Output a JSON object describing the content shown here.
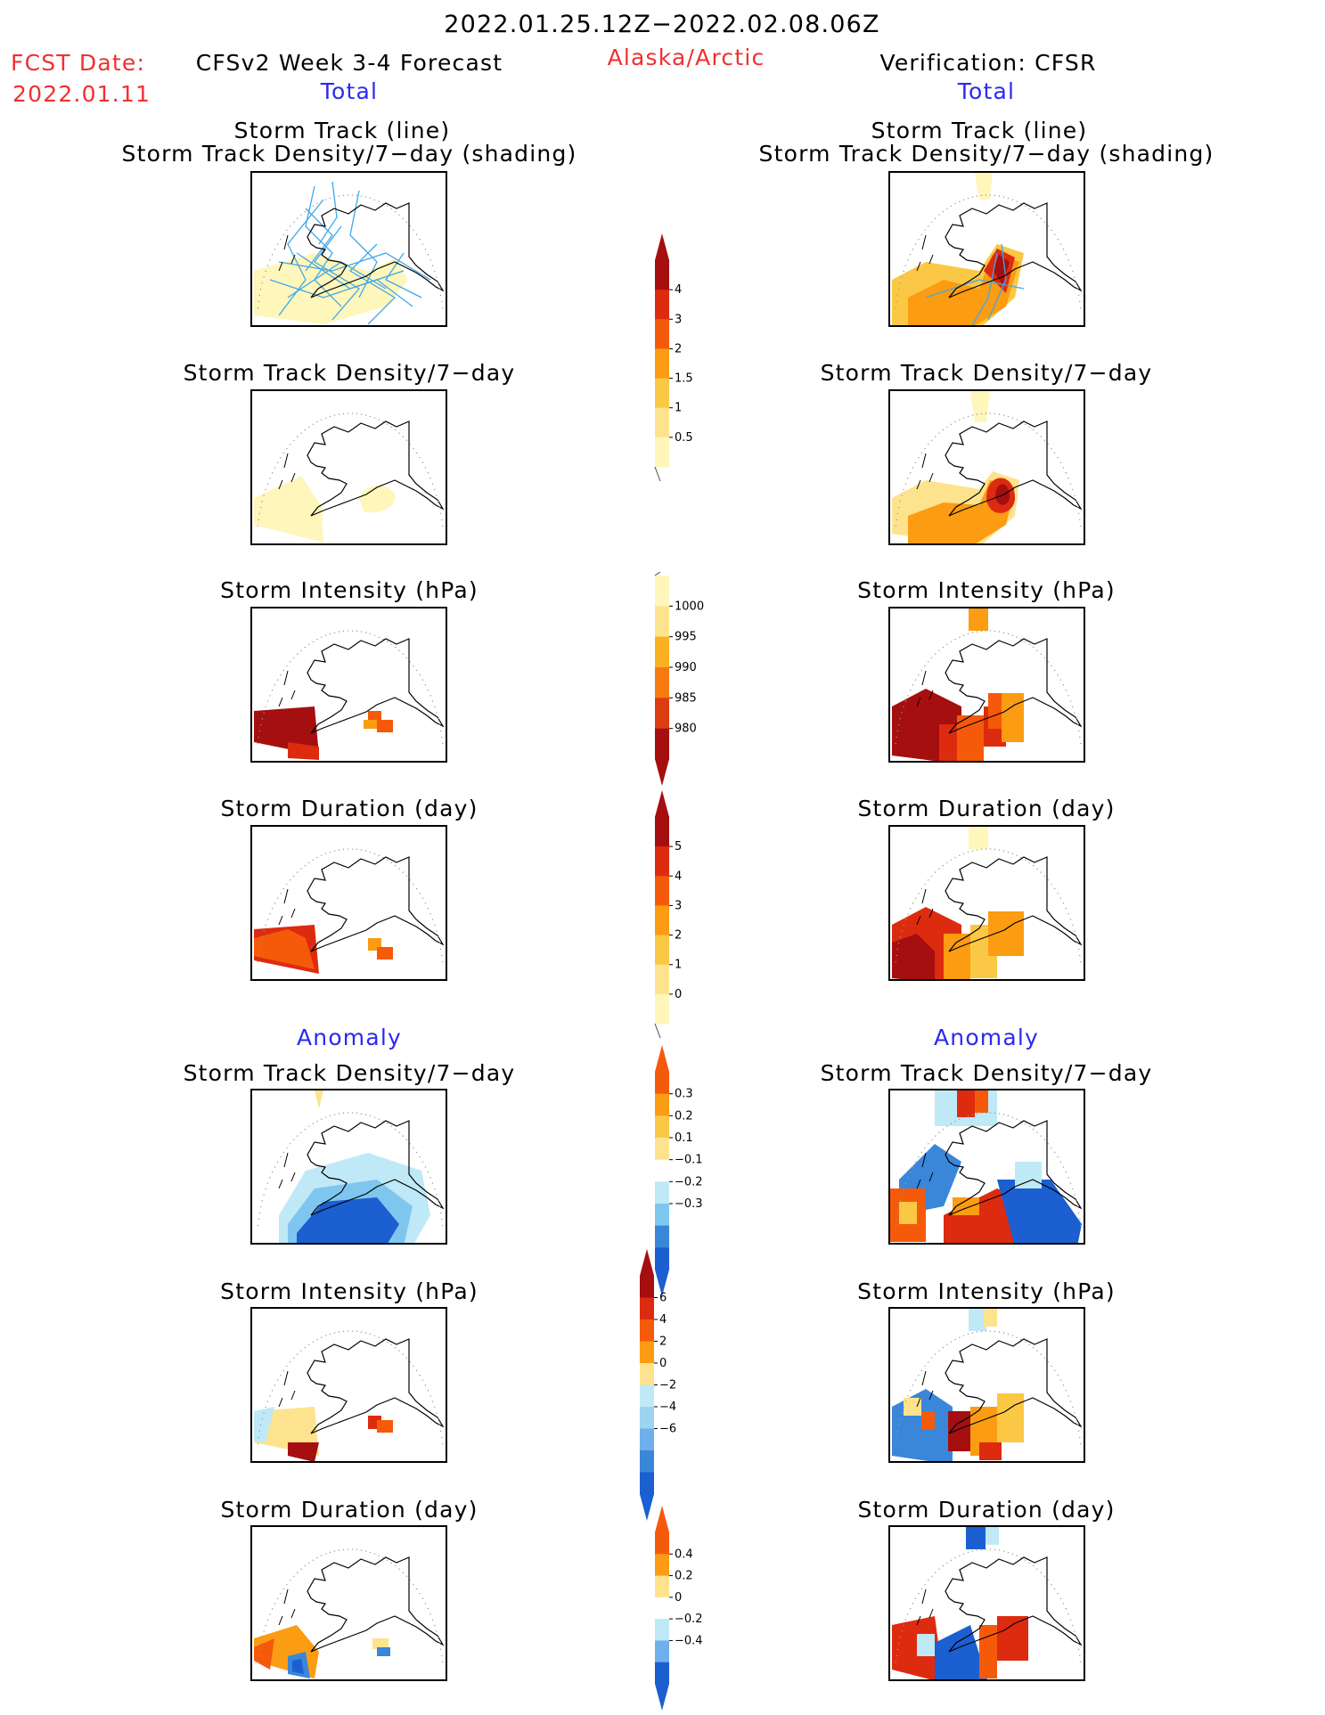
{
  "header": {
    "period": "2022.01.25.12Z−2022.02.08.06Z",
    "fcst_label": "FCST Date:",
    "fcst_date": "2022.01.11",
    "forecast_title": "CFSv2 Week 3-4 Forecast",
    "region": "Alaska/Arctic",
    "verification": "Verification: CFSR",
    "left_section": "Total",
    "right_section": "Total"
  },
  "titles": {
    "track_line": "Storm Track (line)",
    "track_shading": "Storm Track Density/7−day (shading)",
    "density": "Storm Track Density/7−day",
    "intensity": "Storm Intensity (hPa)",
    "duration": "Storm Duration (day)",
    "anomaly": "Anomaly"
  },
  "colorbars": {
    "density_total": {
      "labels": [
        "4",
        "3",
        "2",
        "1.5",
        "1",
        "0.5"
      ],
      "colors": [
        "#a50f0f",
        "#dd2b10",
        "#f55a0a",
        "#fb9c12",
        "#fbc845",
        "#fde38d",
        "#fef6bb"
      ]
    },
    "intensity_total": {
      "labels": [
        "1000",
        "995",
        "990",
        "985",
        "980"
      ],
      "colors": [
        "#fef6bb",
        "#fde38d",
        "#fbb020",
        "#f77a10",
        "#dd3b10",
        "#a50f0f"
      ]
    },
    "duration_total": {
      "labels": [
        "5",
        "4",
        "3",
        "2",
        "1",
        "0"
      ],
      "colors": [
        "#a50f0f",
        "#dd2b10",
        "#f55a0a",
        "#fb9c12",
        "#fbc845",
        "#fde38d",
        "#fef6bb"
      ]
    },
    "density_anom": {
      "labels": [
        "0.3",
        "0.2",
        "0.1",
        "−0.1",
        "−0.2",
        "−0.3"
      ],
      "colors": [
        "#f55a0a",
        "#fb9c12",
        "#fbc845",
        "#fde38d",
        "#ffffff",
        "#bfe9f7",
        "#7fc6ef",
        "#3a86d9",
        "#1b5fd1"
      ]
    },
    "intensity_anom": {
      "labels": [
        "6",
        "4",
        "2",
        "0",
        "−2",
        "−4",
        "−6"
      ],
      "colors": [
        "#a50f0f",
        "#dd2b10",
        "#f55a0a",
        "#fb9c12",
        "#fde38d",
        "#bfe9f7",
        "#9cd4f2",
        "#6fb0ec",
        "#3a86d9",
        "#1b5fd1"
      ]
    },
    "duration_anom": {
      "labels": [
        "0.4",
        "0.2",
        "0",
        "−0.2",
        "−0.4"
      ],
      "colors": [
        "#f55a0a",
        "#fb9c12",
        "#fde38d",
        "#ffffff",
        "#bfe9f7",
        "#6fb0ec",
        "#1b5fd1"
      ]
    }
  },
  "colors": {
    "fcst": "#f03030",
    "section": "#2a2af0",
    "track_line": "#40a8e8"
  }
}
